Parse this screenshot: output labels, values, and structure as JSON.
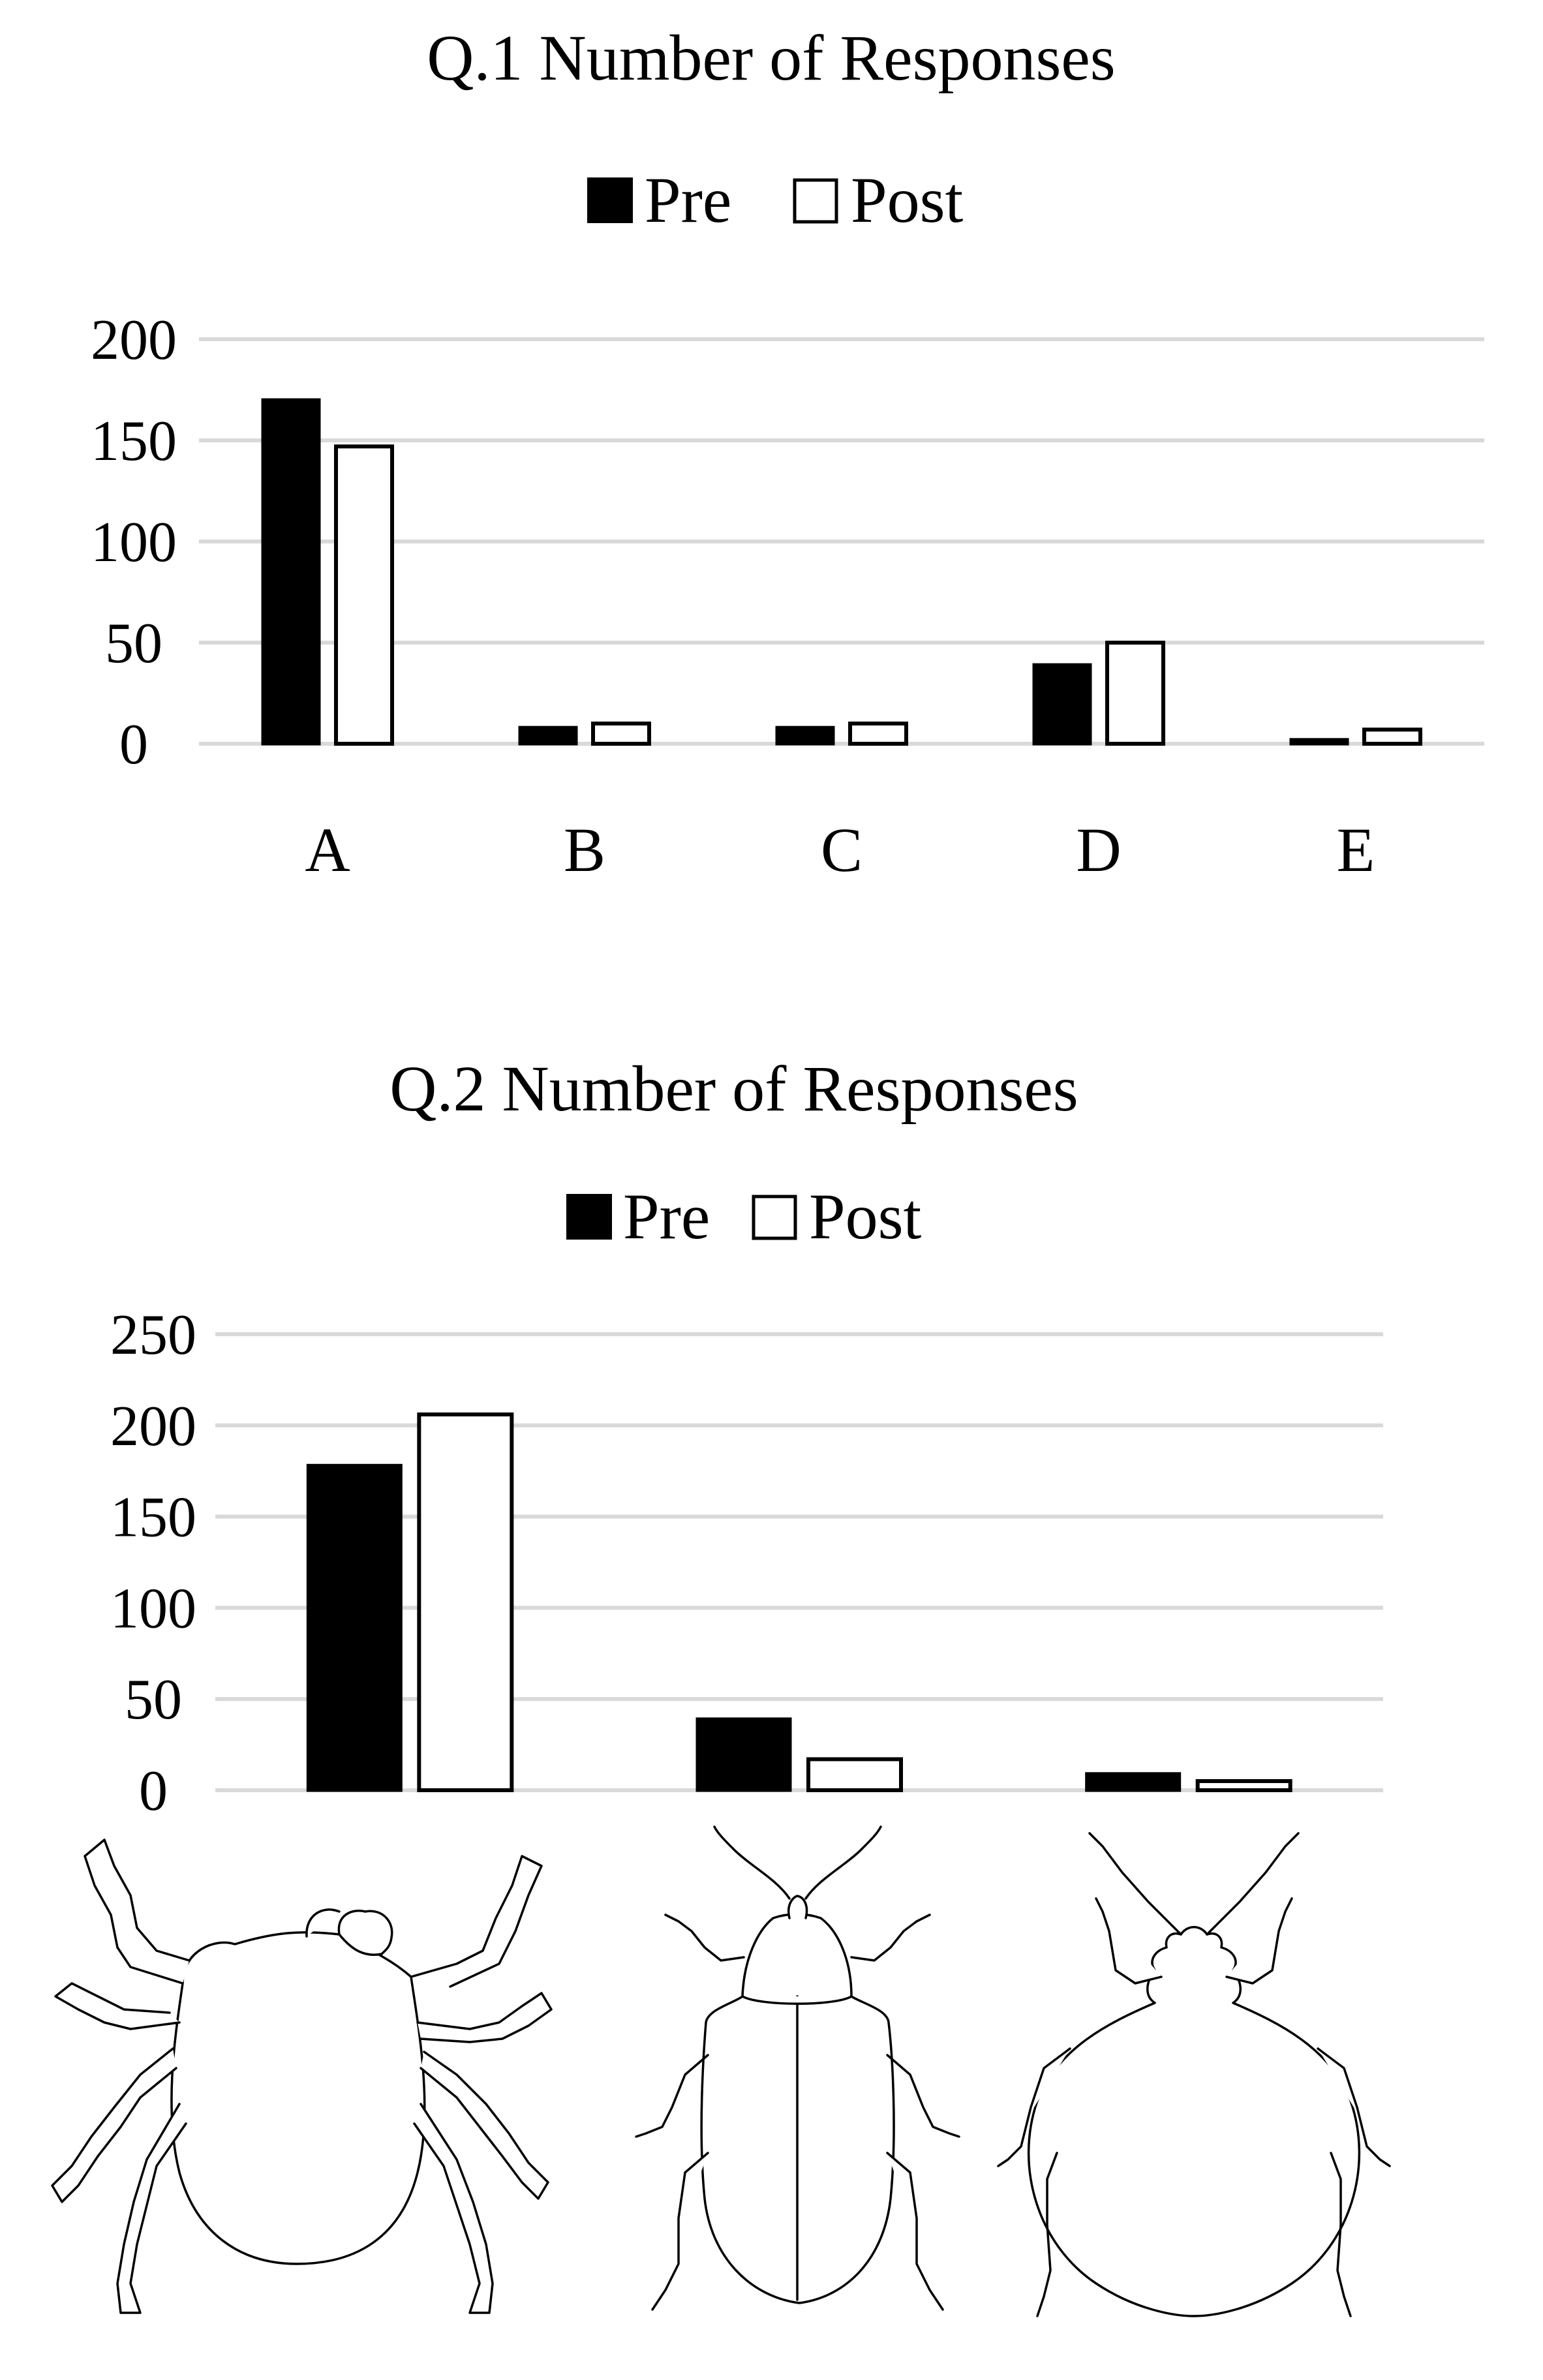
{
  "chart_data": [
    {
      "type": "bar",
      "title": "Q.1 Number of Responses",
      "legend": {
        "placement": "top-center",
        "entries": [
          "Pre",
          "Post"
        ]
      },
      "categories": [
        "A",
        "B",
        "C",
        "D",
        "E"
      ],
      "series": [
        {
          "name": "Pre",
          "values": [
            170,
            8,
            8,
            39,
            2
          ],
          "color": "#000000"
        },
        {
          "name": "Post",
          "values": [
            147,
            10,
            10,
            50,
            7
          ],
          "color": "#ffffff"
        }
      ],
      "ylim": [
        0,
        200
      ],
      "yticks": [
        "0",
        "50",
        "100",
        "150",
        "200"
      ],
      "grid": true
    },
    {
      "type": "bar",
      "title": "Q.2 Number of Responses",
      "legend": {
        "placement": "top-center",
        "entries": [
          "Pre",
          "Post"
        ]
      },
      "categories": [
        "tick",
        "weevil",
        "bed bug"
      ],
      "category_icons": [
        "tick-icon",
        "weevil-icon",
        "bed-bug-icon"
      ],
      "series": [
        {
          "name": "Pre",
          "values": [
            178,
            39,
            9
          ],
          "color": "#000000"
        },
        {
          "name": "Post",
          "values": [
            206,
            17,
            5
          ],
          "color": "#ffffff"
        }
      ],
      "ylim": [
        0,
        250
      ],
      "yticks": [
        "0",
        "50",
        "100",
        "150",
        "200",
        "250"
      ],
      "grid": true
    }
  ]
}
